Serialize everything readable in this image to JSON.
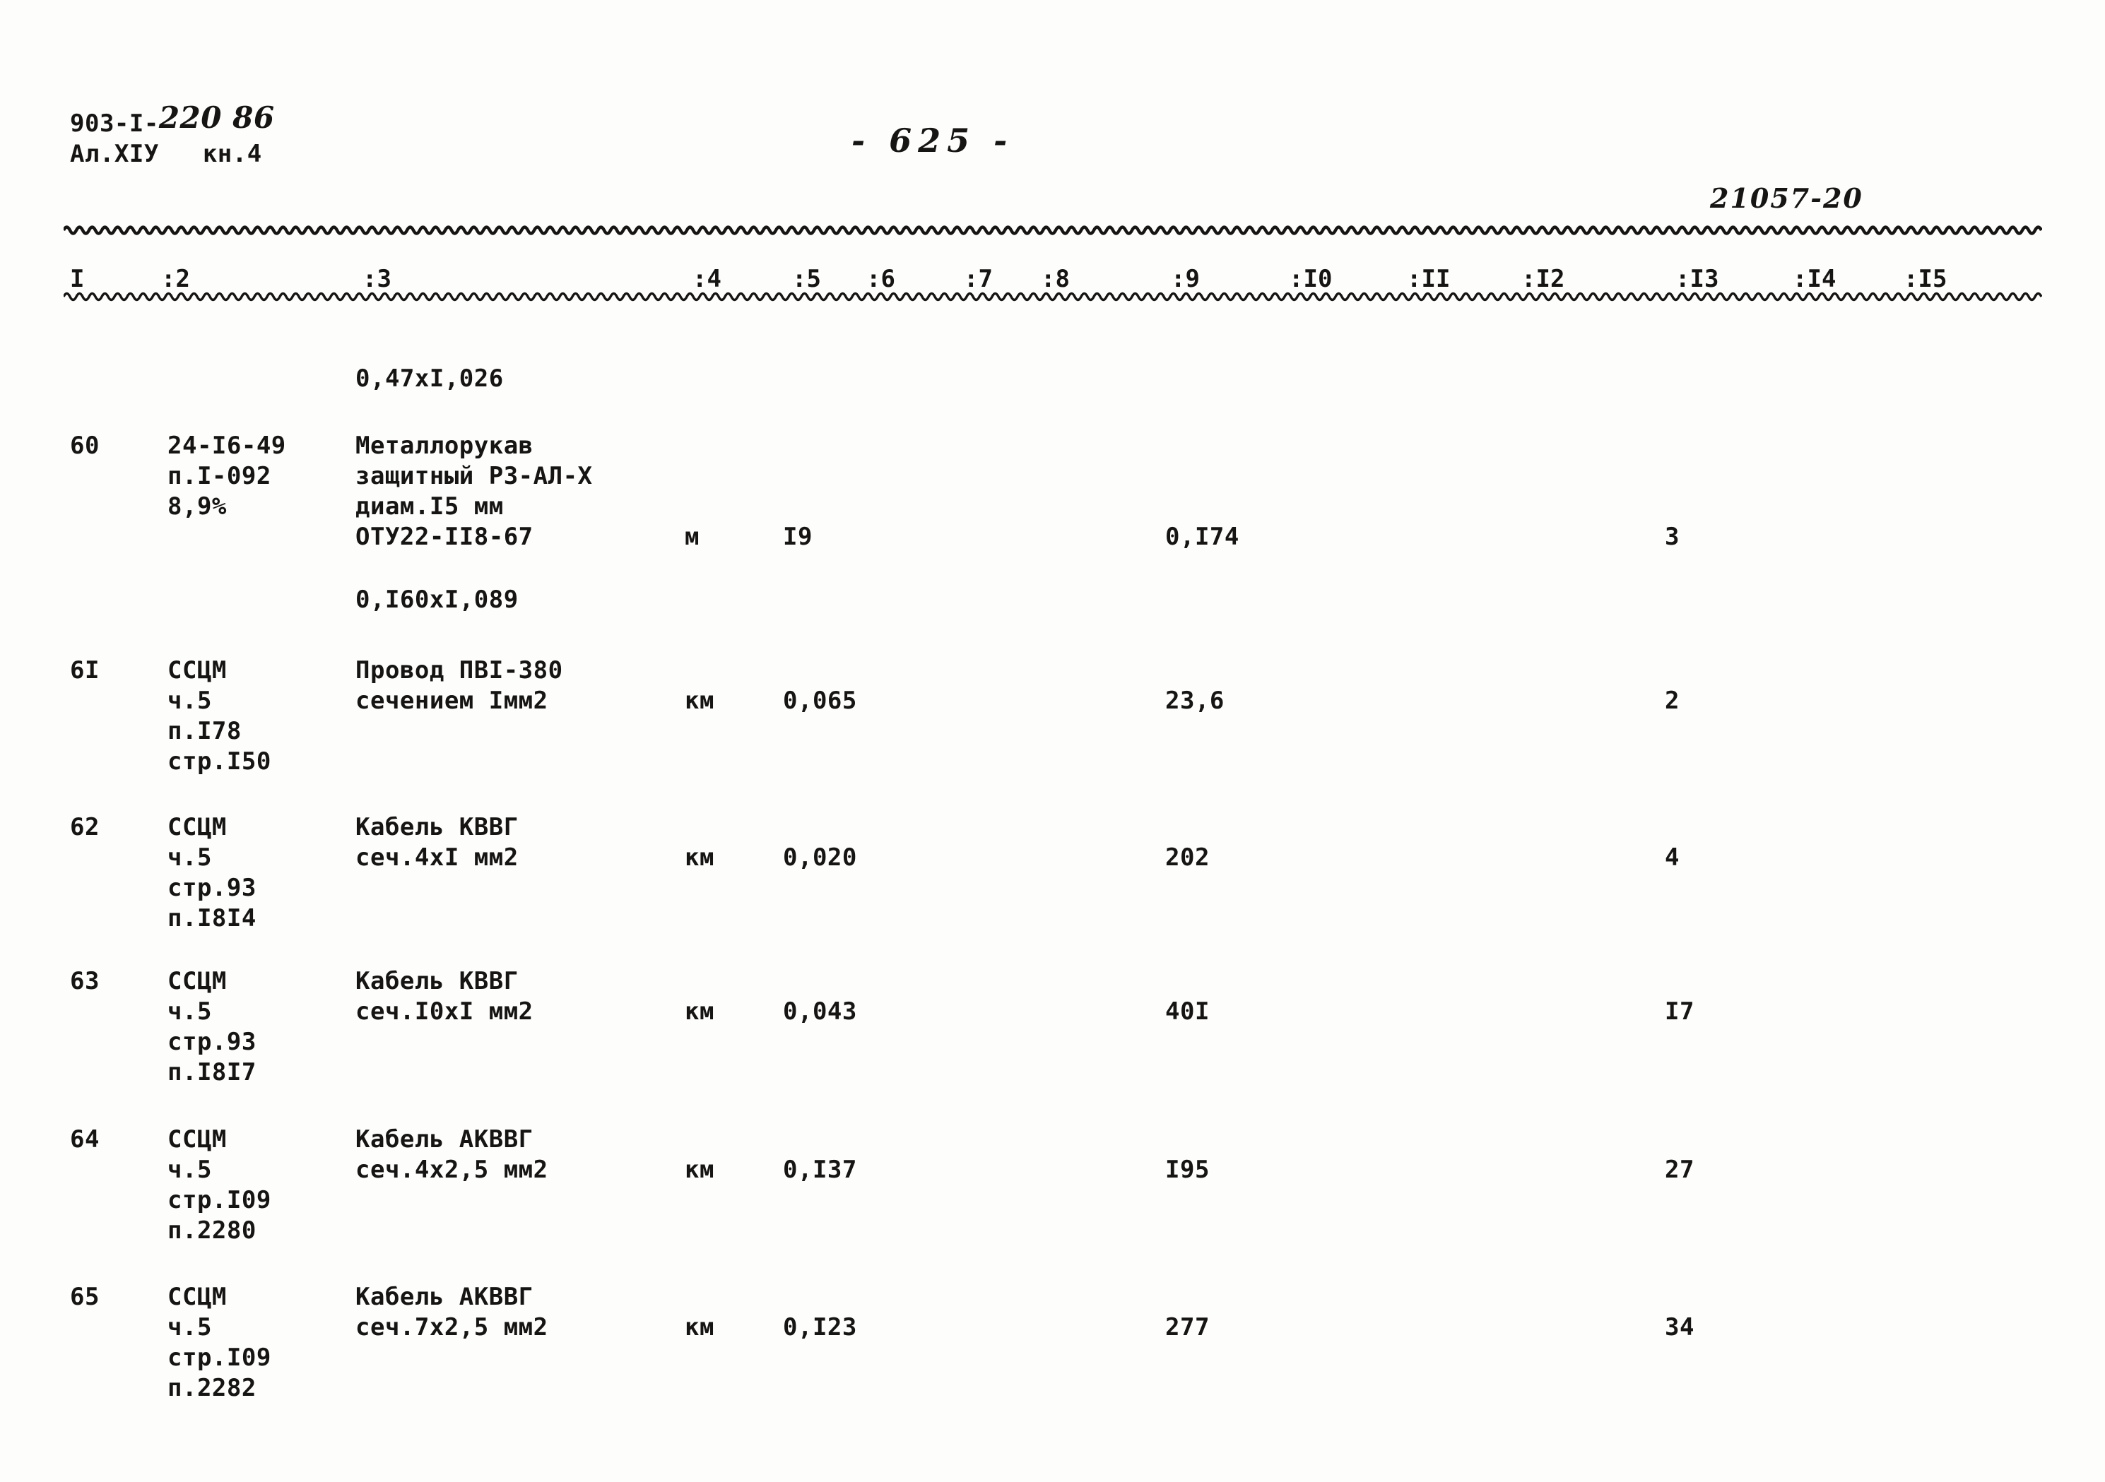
{
  "header": {
    "doc_number_typed": "903-I-",
    "doc_number_hand": "220 86",
    "album": "Ал.ХIУ",
    "book": "кн.4",
    "page_number_display": "- 625 -",
    "stamp": "21057-20"
  },
  "table": {
    "columns": [
      "I",
      ":2",
      ":3",
      ":4",
      ":5",
      ":6",
      ":7",
      ":8",
      ":9",
      ":I0",
      ":II",
      ":I2",
      ":I3",
      ":I4",
      ":I5"
    ],
    "note_top": "0,47xI,026",
    "note_mid": "0,I60xI,089",
    "rows": [
      {
        "num": "60",
        "ref": [
          "24-I6-49",
          "п.I-092",
          "8,9%"
        ],
        "name": [
          "Металлорукав",
          "защитный РЗ-АЛ-Х",
          "диам.I5 мм",
          "ОТУ22-II8-67"
        ],
        "unit": "м",
        "qty": "I9",
        "price": "0,I74",
        "amount": "3"
      },
      {
        "num": "6I",
        "ref": [
          "ССЦМ",
          "ч.5",
          "п.I78",
          "стр.I50"
        ],
        "name": [
          "Провод ПВI-380",
          "сечением Iмм2"
        ],
        "unit": "км",
        "qty": "0,065",
        "price": "23,6",
        "amount": "2"
      },
      {
        "num": "62",
        "ref": [
          "ССЦМ",
          "ч.5",
          "стр.93",
          "п.I8I4"
        ],
        "name": [
          "Кабель КВВГ",
          "сеч.4хI мм2"
        ],
        "unit": "км",
        "qty": "0,020",
        "price": "202",
        "amount": "4"
      },
      {
        "num": "63",
        "ref": [
          "ССЦМ",
          "ч.5",
          "стр.93",
          "п.I8I7"
        ],
        "name": [
          "Кабель КВВГ",
          "сеч.I0хI мм2"
        ],
        "unit": "км",
        "qty": "0,043",
        "price": "40I",
        "amount": "I7"
      },
      {
        "num": "64",
        "ref": [
          "ССЦМ",
          "ч.5",
          "стр.I09",
          "п.2280"
        ],
        "name": [
          "Кабель АКВВГ",
          "сеч.4х2,5 мм2"
        ],
        "unit": "км",
        "qty": "0,I37",
        "price": "I95",
        "amount": "27"
      },
      {
        "num": "65",
        "ref": [
          "ССЦМ",
          "ч.5",
          "стр.I09",
          "п.2282"
        ],
        "name": [
          "Кабель АКВВГ",
          "сеч.7х2,5 мм2"
        ],
        "unit": "км",
        "qty": "0,I23",
        "price": "277",
        "amount": "34"
      }
    ]
  }
}
